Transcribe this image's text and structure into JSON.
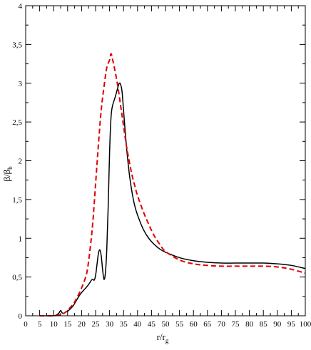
{
  "chart_data": {
    "type": "line",
    "title": "",
    "xlabel": {
      "main": "r/r",
      "sub": "g"
    },
    "ylabel": {
      "main": "β/β",
      "sub": "b"
    },
    "xlim": [
      0,
      100
    ],
    "ylim": [
      0,
      4
    ],
    "x_ticks": [
      0,
      5,
      10,
      15,
      20,
      25,
      30,
      35,
      40,
      45,
      50,
      55,
      60,
      65,
      70,
      75,
      80,
      85,
      90,
      95,
      100
    ],
    "x_tick_labels": [
      "0",
      "5",
      "10",
      "15",
      "20",
      "25",
      "30",
      "35",
      "40",
      "45",
      "50",
      "55",
      "60",
      "65",
      "70",
      "75",
      "80",
      "85",
      "90",
      "95",
      "100"
    ],
    "y_ticks": [
      0,
      0.5,
      1,
      1.5,
      2,
      2.5,
      3,
      3.5,
      4
    ],
    "y_tick_labels": [
      "0",
      "0,5",
      "1",
      "1,5",
      "2",
      "2,5",
      "3",
      "3,5",
      "4"
    ],
    "grid": false,
    "legend": "none",
    "series": [
      {
        "color": "#000000",
        "dash": "solid",
        "x": [
          7,
          10,
          11,
          12,
          12.5,
          13,
          13.5,
          14,
          15,
          16,
          17,
          18,
          19,
          20,
          21,
          22,
          23,
          23.5,
          24,
          24.5,
          25,
          25.5,
          26,
          26.5,
          27,
          27.5,
          28,
          28.5,
          29,
          29.5,
          30,
          30.5,
          31,
          32,
          33,
          33.5,
          34,
          34.5,
          35,
          36,
          37,
          38,
          39,
          40,
          42,
          44,
          46,
          48,
          50,
          55,
          60,
          65,
          70,
          75,
          80,
          85,
          90,
          95,
          100
        ],
        "y": [
          0,
          0,
          0.01,
          0.04,
          0.07,
          0.04,
          0.03,
          0.04,
          0.06,
          0.09,
          0.13,
          0.19,
          0.25,
          0.3,
          0.34,
          0.38,
          0.43,
          0.46,
          0.47,
          0.46,
          0.52,
          0.66,
          0.8,
          0.85,
          0.78,
          0.6,
          0.47,
          0.55,
          0.85,
          1.4,
          2.1,
          2.55,
          2.7,
          2.82,
          2.95,
          3.0,
          2.98,
          2.88,
          2.65,
          2.2,
          1.85,
          1.6,
          1.42,
          1.3,
          1.12,
          1.0,
          0.92,
          0.86,
          0.82,
          0.75,
          0.71,
          0.69,
          0.68,
          0.68,
          0.68,
          0.68,
          0.67,
          0.65,
          0.61
        ]
      },
      {
        "color": "#e00000",
        "dash": "dashed",
        "x": [
          5,
          10,
          12,
          13,
          14,
          15,
          16,
          17,
          18,
          19,
          20,
          21,
          22,
          23,
          24,
          25,
          26,
          27,
          28,
          29,
          30,
          30.5,
          31,
          32,
          33,
          34,
          35,
          36,
          37,
          38,
          39,
          40,
          42,
          44,
          46,
          48,
          50,
          55,
          60,
          65,
          70,
          75,
          80,
          85,
          90,
          95,
          100
        ],
        "y": [
          0,
          0,
          0.01,
          0.02,
          0.04,
          0.07,
          0.11,
          0.15,
          0.21,
          0.28,
          0.36,
          0.45,
          0.58,
          0.85,
          1.2,
          1.7,
          2.2,
          2.65,
          2.95,
          3.2,
          3.3,
          3.38,
          3.32,
          3.15,
          2.95,
          2.7,
          2.45,
          2.2,
          2.0,
          1.82,
          1.68,
          1.55,
          1.35,
          1.18,
          1.03,
          0.92,
          0.83,
          0.72,
          0.67,
          0.65,
          0.64,
          0.64,
          0.64,
          0.64,
          0.63,
          0.6,
          0.55
        ]
      }
    ]
  }
}
